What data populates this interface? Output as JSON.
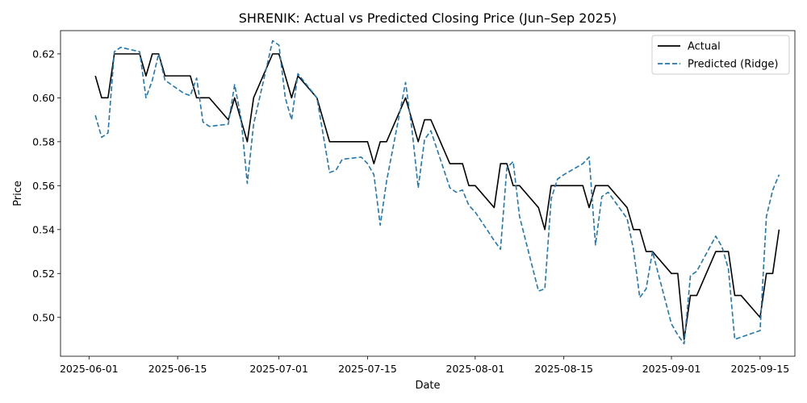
{
  "chart_data": {
    "type": "line",
    "title": "SHRENIK: Actual vs Predicted Closing Price (Jun–Sep 2025)",
    "xlabel": "Date",
    "ylabel": "Price",
    "x_tick_labels": [
      "2025-06-01",
      "2025-06-15",
      "2025-07-01",
      "2025-07-15",
      "2025-08-01",
      "2025-08-15",
      "2025-09-01",
      "2025-09-15"
    ],
    "x_tick_days": [
      0,
      14,
      30,
      44,
      61,
      75,
      92,
      106
    ],
    "y_tick_labels": [
      "0.50",
      "0.52",
      "0.54",
      "0.56",
      "0.58",
      "0.60",
      "0.62"
    ],
    "y_tick_values": [
      0.5,
      0.52,
      0.54,
      0.56,
      0.58,
      0.6,
      0.62
    ],
    "xlim": [
      -4.5,
      111.5
    ],
    "ylim": [
      0.4823,
      0.6306
    ],
    "legend_position": "top-right",
    "series": [
      {
        "name": "Actual",
        "color": "#000000",
        "style": "solid",
        "x": [
          1,
          2,
          3,
          4,
          5,
          8,
          9,
          10,
          11,
          12,
          15,
          16,
          17,
          18,
          19,
          22,
          23,
          24,
          25,
          26,
          29,
          30,
          31,
          32,
          33,
          36,
          37,
          38,
          39,
          40,
          43,
          44,
          45,
          46,
          47,
          50,
          51,
          52,
          53,
          54,
          57,
          58,
          59,
          60,
          61,
          64,
          65,
          66,
          67,
          68,
          71,
          72,
          73,
          74,
          75,
          78,
          79,
          80,
          81,
          82,
          85,
          86,
          87,
          88,
          89,
          92,
          93,
          94,
          95,
          96,
          99,
          100,
          101,
          102,
          103,
          106,
          107,
          108,
          109
        ],
        "y": [
          0.61,
          0.6,
          0.6,
          0.62,
          0.62,
          0.62,
          0.61,
          0.62,
          0.62,
          0.61,
          0.61,
          0.61,
          0.6,
          0.6,
          0.6,
          0.59,
          0.6,
          0.59,
          0.58,
          0.6,
          0.62,
          0.62,
          0.61,
          0.6,
          0.61,
          0.6,
          0.59,
          0.58,
          0.58,
          0.58,
          0.58,
          0.58,
          0.57,
          0.58,
          0.58,
          0.6,
          0.59,
          0.58,
          0.59,
          0.59,
          0.57,
          0.57,
          0.57,
          0.56,
          0.56,
          0.55,
          0.57,
          0.57,
          0.56,
          0.56,
          0.55,
          0.54,
          0.56,
          0.56,
          0.56,
          0.56,
          0.55,
          0.56,
          0.56,
          0.56,
          0.55,
          0.54,
          0.54,
          0.53,
          0.53,
          0.52,
          0.52,
          0.49,
          0.51,
          0.51,
          0.53,
          0.53,
          0.53,
          0.51,
          0.51,
          0.5,
          0.52,
          0.52,
          0.54
        ]
      },
      {
        "name": "Predicted (Ridge)",
        "color": "#1f77b4",
        "style": "dashed",
        "x": [
          1,
          2,
          3,
          4,
          5,
          8,
          9,
          10,
          11,
          12,
          15,
          16,
          17,
          18,
          19,
          22,
          23,
          24,
          25,
          26,
          29,
          30,
          31,
          32,
          33,
          36,
          37,
          38,
          39,
          40,
          43,
          44,
          45,
          46,
          47,
          50,
          51,
          52,
          53,
          54,
          57,
          58,
          59,
          60,
          61,
          64,
          65,
          66,
          67,
          68,
          71,
          72,
          73,
          74,
          75,
          78,
          79,
          80,
          81,
          82,
          85,
          86,
          87,
          88,
          89,
          92,
          93,
          94,
          95,
          96,
          99,
          100,
          101,
          102,
          103,
          106,
          107,
          108,
          109
        ],
        "y": [
          0.592,
          0.582,
          0.584,
          0.621,
          0.623,
          0.621,
          0.6,
          0.608,
          0.62,
          0.608,
          0.602,
          0.601,
          0.609,
          0.589,
          0.587,
          0.588,
          0.606,
          0.591,
          0.561,
          0.588,
          0.626,
          0.624,
          0.6,
          0.59,
          0.611,
          0.6,
          0.583,
          0.566,
          0.567,
          0.572,
          0.573,
          0.57,
          0.565,
          0.542,
          0.562,
          0.607,
          0.586,
          0.559,
          0.581,
          0.585,
          0.559,
          0.557,
          0.558,
          0.551,
          0.548,
          0.535,
          0.531,
          0.568,
          0.571,
          0.546,
          0.512,
          0.513,
          0.554,
          0.563,
          0.565,
          0.57,
          0.573,
          0.533,
          0.555,
          0.557,
          0.545,
          0.531,
          0.509,
          0.513,
          0.53,
          0.497,
          0.492,
          0.488,
          0.519,
          0.521,
          0.537,
          0.532,
          0.522,
          0.49,
          0.491,
          0.494,
          0.546,
          0.558,
          0.565
        ]
      }
    ]
  }
}
